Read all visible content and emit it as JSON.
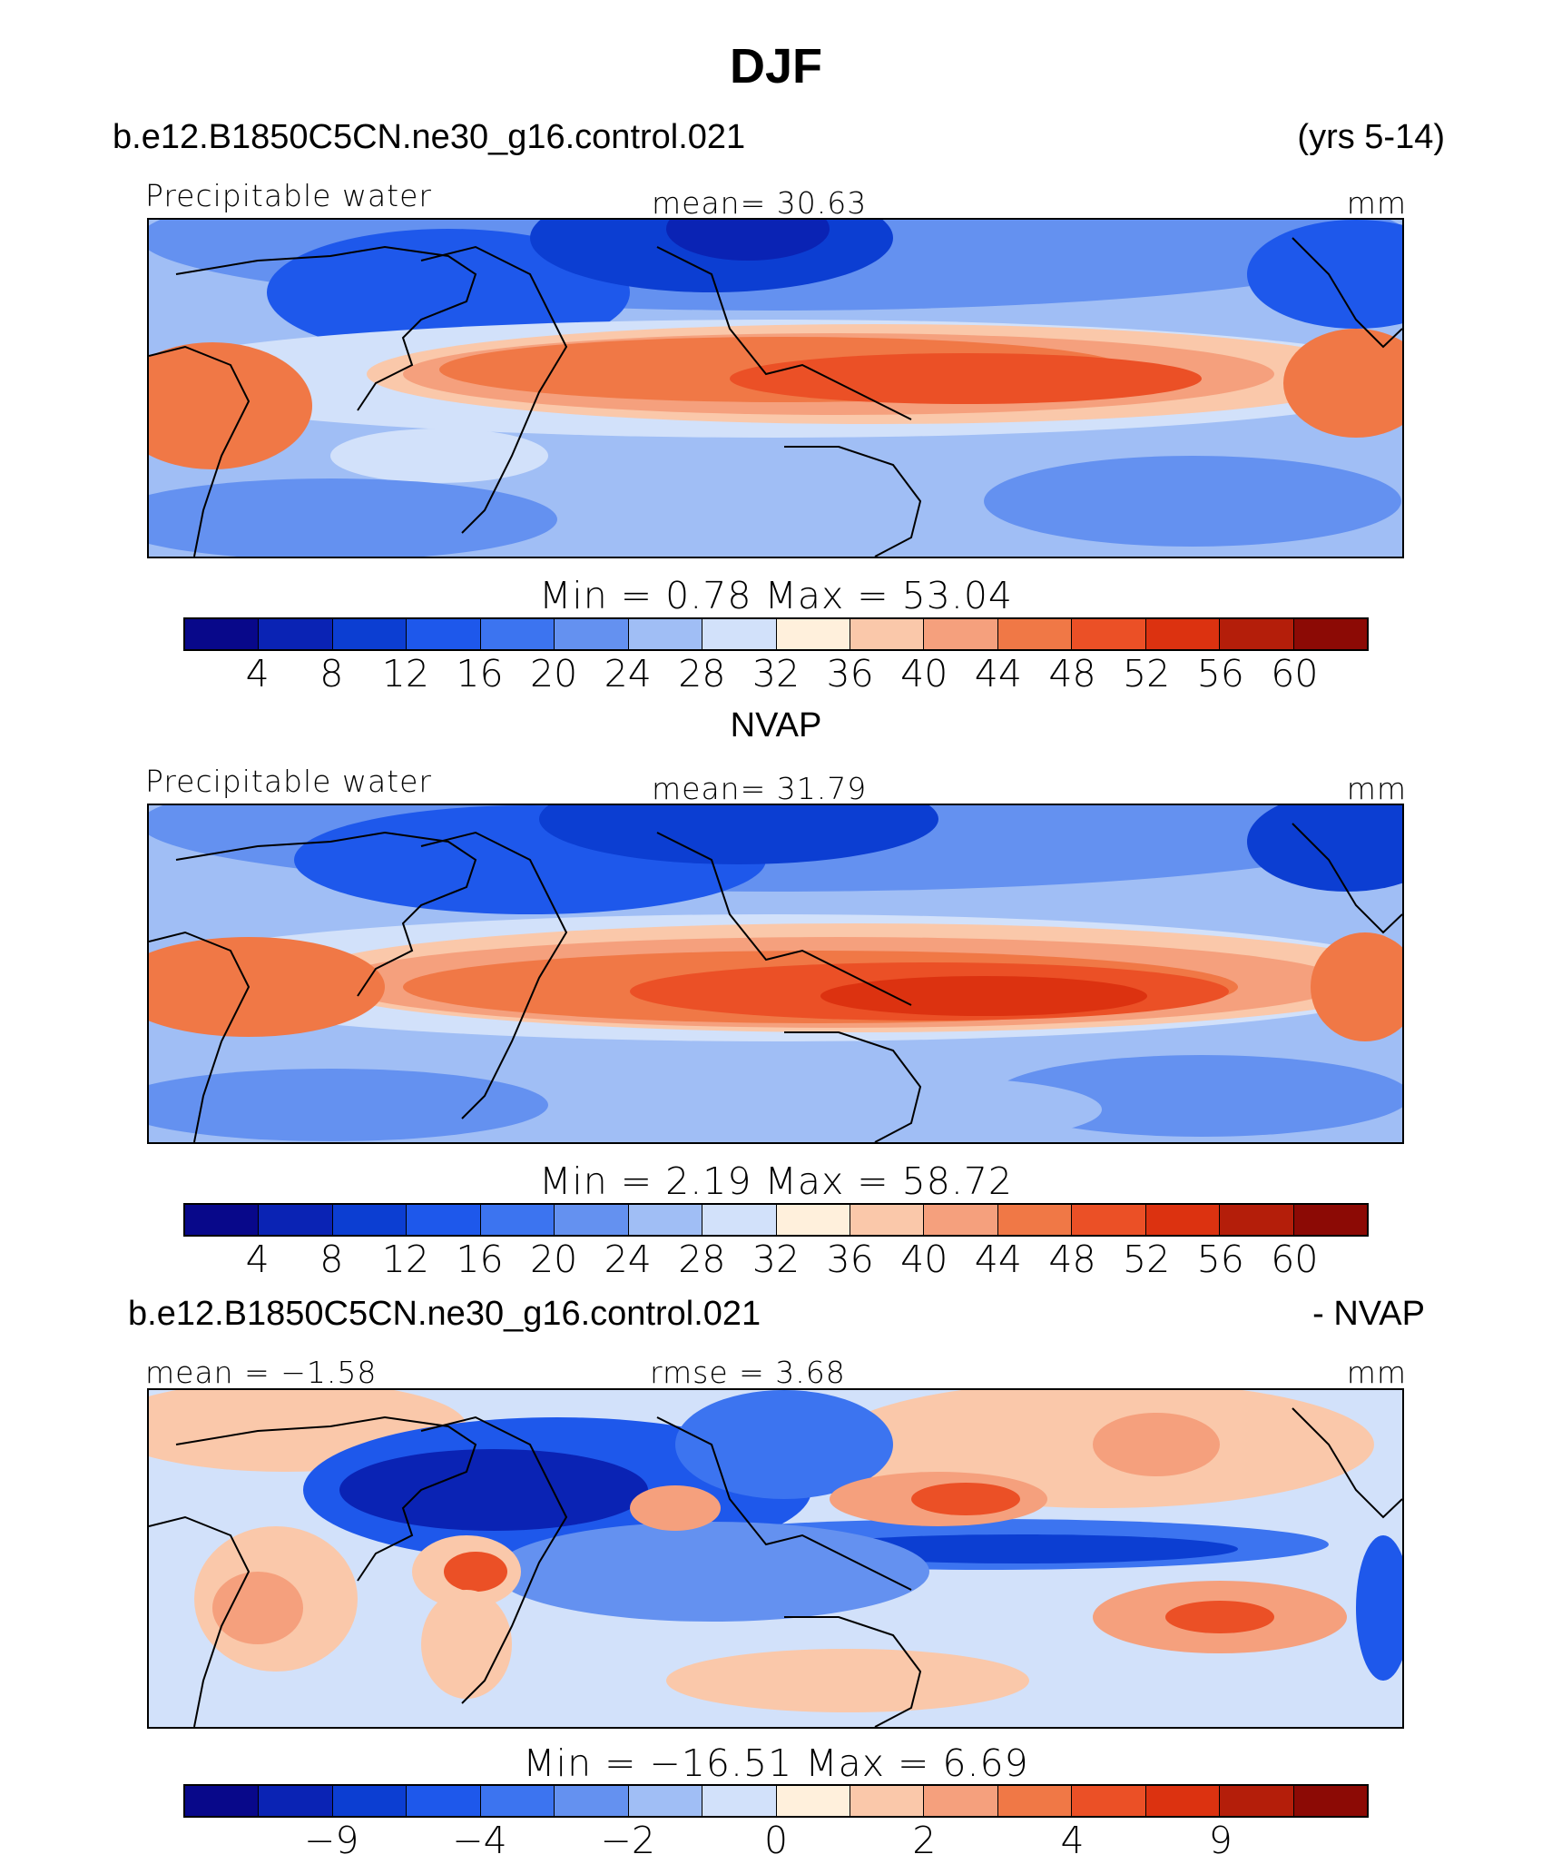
{
  "title": "DJF",
  "case_name": "b.e12.B1850C5CN.ne30_g16.control.021",
  "years": "(yrs 5-14)",
  "panels": [
    {
      "id": "model",
      "left_label": "Precipitable water",
      "center_label": "mean=  30.63",
      "right_label": "mm",
      "minmax_label": "Min =    0.78  Max =   53.04",
      "ticks": [
        "4",
        "8",
        "12",
        "16",
        "20",
        "24",
        "28",
        "32",
        "36",
        "40",
        "44",
        "48",
        "52",
        "56",
        "60"
      ]
    },
    {
      "id": "obs",
      "header": "NVAP",
      "left_label": "Precipitable water",
      "center_label": "mean=  31.79",
      "right_label": "mm",
      "minmax_label": "Min =    2.19  Max =   58.72",
      "ticks": [
        "4",
        "8",
        "12",
        "16",
        "20",
        "24",
        "28",
        "32",
        "36",
        "40",
        "44",
        "48",
        "52",
        "56",
        "60"
      ]
    },
    {
      "id": "diff",
      "header_left": "b.e12.B1850C5CN.ne30_g16.control.021",
      "header_right": "- NVAP",
      "left_label": "mean =  −1.58",
      "center_label": "rmse =    3.68",
      "right_label": "mm",
      "minmax_label": "Min = −16.51  Max =    6.69",
      "ticks": [
        "−9",
        "−4",
        "−2",
        "0",
        "2",
        "4",
        "9"
      ]
    }
  ],
  "colors": [
    "#08088a",
    "#0a23b4",
    "#0c3ed2",
    "#1e58eb",
    "#3c74f0",
    "#6491f0",
    "#a0bef5",
    "#d2e1fa",
    "#fff0dc",
    "#fac8aa",
    "#f5a07d",
    "#f07846",
    "#eb5026",
    "#dc3210",
    "#b41e0a",
    "#8c0a05"
  ],
  "chart_data": [
    {
      "type": "heatmap",
      "title": "Precipitable water",
      "subtitle": "b.e12.B1850C5CN.ne30_g16.control.021 (yrs 5-14)",
      "units": "mm",
      "mean": 30.63,
      "min": 0.78,
      "max": 53.04,
      "levels": [
        4,
        8,
        12,
        16,
        20,
        24,
        28,
        32,
        36,
        40,
        44,
        48,
        52,
        56,
        60
      ]
    },
    {
      "type": "heatmap",
      "title": "Precipitable water",
      "subtitle": "NVAP",
      "units": "mm",
      "mean": 31.79,
      "min": 2.19,
      "max": 58.72,
      "levels": [
        4,
        8,
        12,
        16,
        20,
        24,
        28,
        32,
        36,
        40,
        44,
        48,
        52,
        56,
        60
      ]
    },
    {
      "type": "heatmap",
      "title": "b.e12.B1850C5CN.ne30_g16.control.021 - NVAP",
      "units": "mm",
      "mean": -1.58,
      "rmse": 3.68,
      "min": -16.51,
      "max": 6.69,
      "levels": [
        -9,
        -4,
        -2,
        0,
        2,
        4,
        9
      ]
    }
  ]
}
